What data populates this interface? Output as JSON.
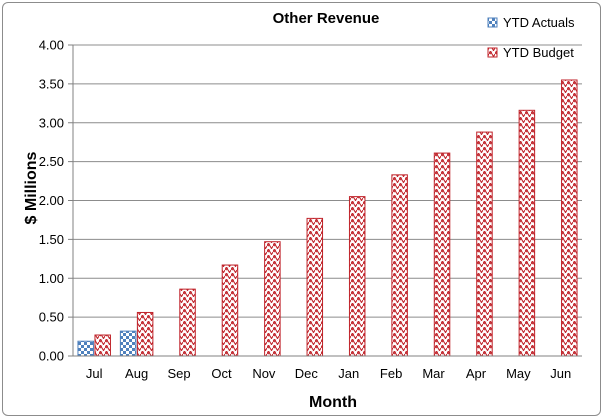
{
  "chart_data": {
    "type": "bar",
    "title": "Other Revenue",
    "xlabel": "Month",
    "ylabel": "$ Millions",
    "categories": [
      "Jul",
      "Aug",
      "Sep",
      "Oct",
      "Nov",
      "Dec",
      "Jan",
      "Feb",
      "Mar",
      "Apr",
      "May",
      "Jun"
    ],
    "ylim": [
      0,
      4
    ],
    "yticks": [
      "0.00",
      "0.50",
      "1.00",
      "1.50",
      "2.00",
      "2.50",
      "3.00",
      "3.50",
      "4.00"
    ],
    "grid": true,
    "legend_position": "top-right",
    "series": [
      {
        "name": "YTD Actuals",
        "color": "#4f81bd",
        "pattern": "checker",
        "values": [
          0.19,
          0.32,
          null,
          null,
          null,
          null,
          null,
          null,
          null,
          null,
          null,
          null
        ]
      },
      {
        "name": "YTD Budget",
        "color": "#c0232a",
        "pattern": "zigzag",
        "values": [
          0.27,
          0.56,
          0.86,
          1.17,
          1.47,
          1.77,
          2.05,
          2.33,
          2.61,
          2.88,
          3.16,
          3.55
        ]
      }
    ]
  }
}
